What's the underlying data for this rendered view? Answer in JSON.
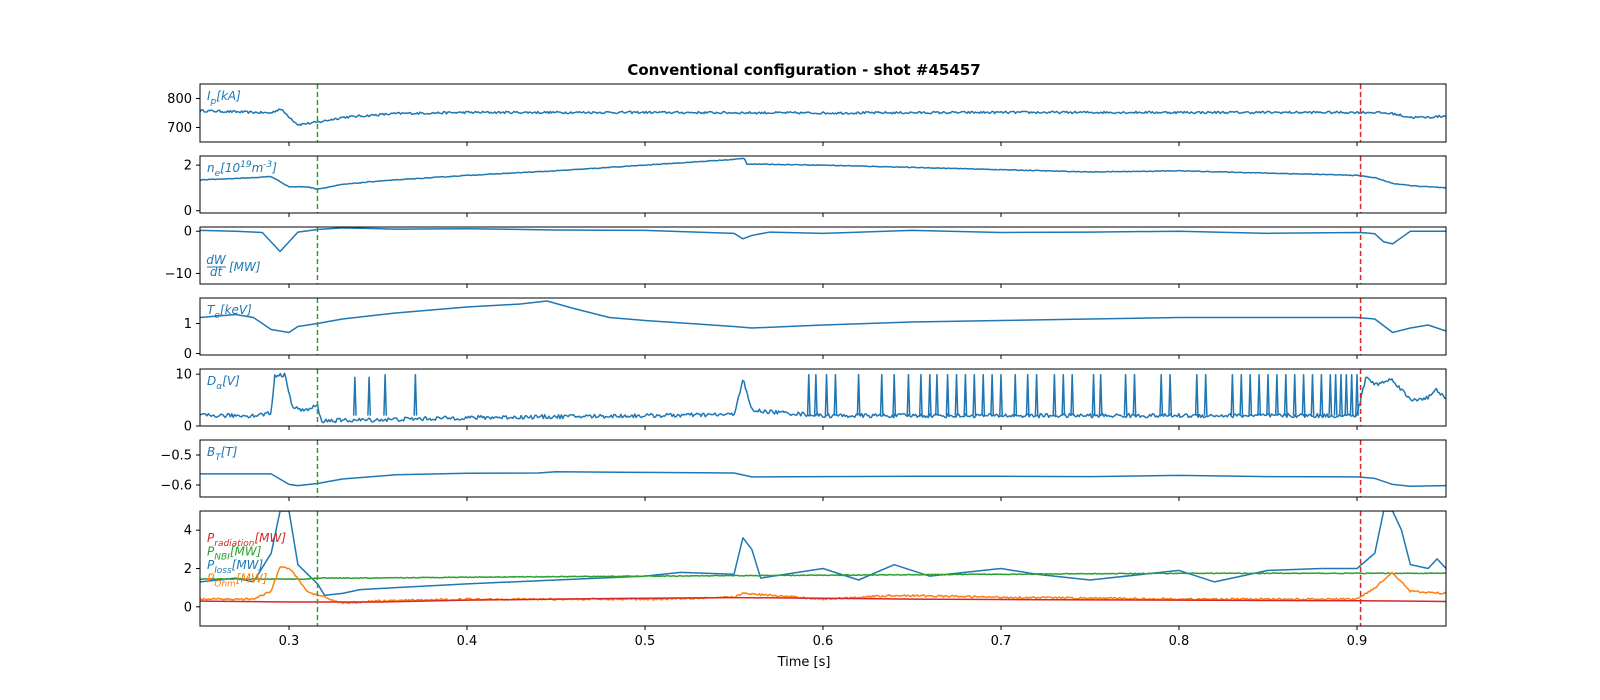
{
  "chart_data": {
    "type": "line",
    "title": "Conventional configuration - shot #45457",
    "xlabel": "Time [s]",
    "xlim": [
      0.25,
      0.95
    ],
    "xticks": [
      0.3,
      0.4,
      0.5,
      0.6,
      0.7,
      0.8,
      0.9
    ],
    "xtick_labels": [
      "0.3",
      "0.4",
      "0.5",
      "0.6",
      "0.7",
      "0.8",
      "0.9"
    ],
    "vlines": [
      {
        "x": 0.316,
        "color": "#2ca02c",
        "style": "dashed"
      },
      {
        "x": 0.902,
        "color": "#d62728",
        "style": "dashed"
      }
    ],
    "panels": [
      {
        "label": "I_p[kA]",
        "label_main": "I",
        "label_sub": "p",
        "label_unit": "[kA]",
        "ylim": [
          650,
          850
        ],
        "yticks": [
          700,
          800
        ],
        "ytick_labels": [
          "700",
          "800"
        ],
        "series": [
          {
            "color": "#1f77b4",
            "noise": 4,
            "x": [
              0.25,
              0.28,
              0.29,
              0.295,
              0.305,
              0.316,
              0.33,
              0.36,
              0.4,
              0.5,
              0.6,
              0.7,
              0.8,
              0.9,
              0.91,
              0.92,
              0.93,
              0.94,
              0.95
            ],
            "y": [
              758,
              752,
              750,
              765,
              710,
              718,
              735,
              748,
              752,
              752,
              750,
              752,
              752,
              752,
              752,
              748,
              735,
              735,
              740
            ]
          }
        ]
      },
      {
        "label": "n_e[10^19 m^-3]",
        "label_main": "n",
        "label_sub": "e",
        "label_unit": "[10",
        "label_sup": "19",
        "label_unit2": "m",
        "label_sup2": "-3",
        "label_end": "]",
        "ylim": [
          -0.1,
          2.4
        ],
        "yticks": [
          0,
          2
        ],
        "ytick_labels": [
          "0",
          "2"
        ],
        "series": [
          {
            "color": "#1f77b4",
            "noise": 0.015,
            "x": [
              0.25,
              0.28,
              0.29,
              0.3,
              0.31,
              0.316,
              0.33,
              0.35,
              0.4,
              0.45,
              0.5,
              0.55,
              0.556,
              0.557,
              0.6,
              0.65,
              0.7,
              0.75,
              0.8,
              0.85,
              0.9,
              0.91,
              0.92,
              0.93,
              0.95
            ],
            "y": [
              1.35,
              1.45,
              1.5,
              1.05,
              1.05,
              0.95,
              1.15,
              1.3,
              1.55,
              1.75,
              2.0,
              2.25,
              2.3,
              2.05,
              2.0,
              1.9,
              1.8,
              1.7,
              1.75,
              1.65,
              1.55,
              1.45,
              1.2,
              1.1,
              1.0
            ]
          }
        ]
      },
      {
        "label": "dW/dt[MW]",
        "label_frac_num": "dW",
        "label_frac_den": "dt",
        "label_unit": "[MW]",
        "ylim": [
          -12.5,
          1.0
        ],
        "yticks": [
          -10,
          0
        ],
        "ytick_labels": [
          "−10",
          "0"
        ],
        "series": [
          {
            "color": "#1f77b4",
            "noise": 0,
            "x": [
              0.25,
              0.27,
              0.285,
              0.295,
              0.305,
              0.316,
              0.33,
              0.36,
              0.4,
              0.45,
              0.5,
              0.55,
              0.555,
              0.56,
              0.57,
              0.6,
              0.65,
              0.7,
              0.75,
              0.8,
              0.85,
              0.9,
              0.905,
              0.91,
              0.915,
              0.92,
              0.93,
              0.95
            ],
            "y": [
              0.2,
              0.0,
              -0.3,
              -4.8,
              -0.2,
              0.4,
              0.8,
              0.5,
              0.6,
              0.3,
              0.2,
              -0.5,
              -1.8,
              -1.0,
              -0.2,
              -0.5,
              0.2,
              -0.3,
              -0.2,
              0.0,
              -0.5,
              -0.3,
              -0.4,
              -0.6,
              -2.5,
              -3.0,
              0.0,
              0.0
            ]
          }
        ]
      },
      {
        "label": "T_e[keV]",
        "label_main": "T",
        "label_sub": "e",
        "label_unit": "[keV]",
        "ylim": [
          -0.05,
          1.85
        ],
        "yticks": [
          0,
          1
        ],
        "ytick_labels": [
          "0",
          "1"
        ],
        "series": [
          {
            "color": "#1f77b4",
            "noise": 0,
            "x": [
              0.25,
              0.27,
              0.28,
              0.29,
              0.3,
              0.305,
              0.316,
              0.33,
              0.36,
              0.4,
              0.43,
              0.445,
              0.46,
              0.48,
              0.5,
              0.55,
              0.56,
              0.6,
              0.65,
              0.7,
              0.75,
              0.8,
              0.85,
              0.9,
              0.91,
              0.92,
              0.93,
              0.94,
              0.95
            ],
            "y": [
              1.2,
              1.3,
              1.2,
              0.8,
              0.7,
              0.9,
              1.0,
              1.15,
              1.35,
              1.55,
              1.65,
              1.75,
              1.5,
              1.2,
              1.1,
              0.9,
              0.85,
              0.95,
              1.05,
              1.1,
              1.15,
              1.2,
              1.2,
              1.2,
              1.15,
              0.7,
              0.85,
              0.95,
              0.75
            ]
          }
        ]
      },
      {
        "label": "D_alpha[V]",
        "label_main": "D",
        "label_sub": "α",
        "label_unit": "[V]",
        "ylim": [
          0,
          11.0
        ],
        "yticks": [
          0,
          10
        ],
        "ytick_labels": [
          "0",
          "10"
        ],
        "series": [
          {
            "color": "#1f77b4",
            "noise": 0.4,
            "x": [
              0.25,
              0.26,
              0.28,
              0.29,
              0.292,
              0.298,
              0.302,
              0.31,
              0.316,
              0.318,
              0.35,
              0.4,
              0.5,
              0.55,
              0.555,
              0.56,
              0.6,
              0.7,
              0.8,
              0.9,
              0.905,
              0.91,
              0.92,
              0.93,
              0.94,
              0.945,
              0.95
            ],
            "y": [
              2.0,
              2.0,
              2.0,
              2.5,
              9.8,
              9.8,
              3.5,
              3.0,
              4.0,
              1.0,
              1.2,
              1.6,
              2.0,
              2.2,
              9.0,
              3.0,
              2.0,
              2.0,
              2.0,
              2.0,
              9.5,
              8.0,
              9.0,
              5.0,
              5.5,
              7.0,
              5.0
            ]
          },
          {
            "color": "#1f77b4",
            "spikes_x": [
              0.337,
              0.345,
              0.354,
              0.371,
              0.592,
              0.596,
              0.602,
              0.607,
              0.62,
              0.633,
              0.64,
              0.648,
              0.655,
              0.66,
              0.664,
              0.67,
              0.675,
              0.68,
              0.685,
              0.69,
              0.695,
              0.7,
              0.708,
              0.715,
              0.72,
              0.73,
              0.735,
              0.74,
              0.752,
              0.756,
              0.77,
              0.775,
              0.79,
              0.795,
              0.81,
              0.815,
              0.83,
              0.835,
              0.84,
              0.845,
              0.85,
              0.855,
              0.86,
              0.865,
              0.87,
              0.875,
              0.88,
              0.885,
              0.888,
              0.891,
              0.894,
              0.897,
              0.9
            ],
            "spikes_y": [
              9.5,
              9.5,
              10.0,
              10.0,
              10.0,
              10.0,
              10.0,
              10.0,
              10.0,
              10.0,
              10.0,
              10.0,
              10.0,
              10.0,
              10.0,
              10.0,
              10.0,
              10.0,
              10.0,
              10.0,
              10.0,
              10.0,
              10.0,
              10.0,
              10.0,
              10.0,
              10.0,
              10.0,
              10.0,
              10.0,
              10.0,
              10.0,
              10.0,
              10.0,
              10.0,
              10.0,
              10.0,
              10.0,
              10.0,
              10.0,
              10.0,
              10.0,
              10.0,
              10.0,
              10.0,
              10.0,
              10.0,
              10.0,
              10.0,
              10.0,
              10.0,
              10.0,
              10.0
            ]
          }
        ]
      },
      {
        "label": "B_T[T]",
        "label_main": "B",
        "label_sub": "T",
        "label_unit": "[T]",
        "ylim": [
          -0.64,
          -0.45
        ],
        "yticks": [
          -0.6,
          -0.5
        ],
        "ytick_labels": [
          "−0.6",
          "−0.5"
        ],
        "series": [
          {
            "color": "#1f77b4",
            "noise": 0,
            "x": [
              0.25,
              0.29,
              0.3,
              0.305,
              0.316,
              0.33,
              0.36,
              0.4,
              0.44,
              0.45,
              0.5,
              0.55,
              0.56,
              0.6,
              0.65,
              0.7,
              0.75,
              0.8,
              0.85,
              0.9,
              0.91,
              0.92,
              0.93,
              0.95
            ],
            "y": [
              -0.563,
              -0.563,
              -0.598,
              -0.602,
              -0.595,
              -0.58,
              -0.566,
              -0.561,
              -0.56,
              -0.556,
              -0.558,
              -0.56,
              -0.573,
              -0.572,
              -0.571,
              -0.571,
              -0.572,
              -0.568,
              -0.572,
              -0.573,
              -0.578,
              -0.598,
              -0.604,
              -0.602
            ]
          }
        ]
      },
      {
        "ylim": [
          -1.0,
          5.0
        ],
        "yticks": [
          0,
          2,
          4
        ],
        "ytick_labels": [
          "0",
          "2",
          "4"
        ],
        "series": [
          {
            "name": "P_loss[MW]",
            "label_main": "P",
            "label_sub": "loss",
            "label_unit": "[MW]",
            "color": "#1f77b4",
            "noise": 0,
            "x": [
              0.25,
              0.27,
              0.28,
              0.29,
              0.295,
              0.3,
              0.305,
              0.316,
              0.32,
              0.33,
              0.34,
              0.36,
              0.4,
              0.45,
              0.5,
              0.52,
              0.55,
              0.555,
              0.56,
              0.565,
              0.6,
              0.62,
              0.64,
              0.66,
              0.7,
              0.72,
              0.75,
              0.8,
              0.82,
              0.85,
              0.88,
              0.9,
              0.91,
              0.915,
              0.92,
              0.925,
              0.93,
              0.94,
              0.945,
              0.95
            ],
            "y": [
              1.3,
              1.5,
              1.3,
              2.8,
              5.0,
              5.0,
              2.2,
              1.2,
              0.6,
              0.7,
              0.9,
              1.0,
              1.2,
              1.4,
              1.6,
              1.8,
              1.7,
              3.6,
              3.0,
              1.5,
              2.0,
              1.4,
              2.2,
              1.6,
              2.0,
              1.7,
              1.4,
              1.9,
              1.3,
              1.9,
              2.0,
              2.0,
              2.8,
              5.0,
              5.0,
              4.0,
              2.2,
              2.0,
              2.5,
              2.0
            ]
          },
          {
            "name": "P_NBI[MW]",
            "label_main": "P",
            "label_sub": "NBI",
            "label_unit": "[MW]",
            "color": "#2ca02c",
            "noise": 0.02,
            "x": [
              0.25,
              0.31,
              0.316,
              0.35,
              0.4,
              0.5,
              0.6,
              0.7,
              0.8,
              0.9,
              0.95
            ],
            "y": [
              1.45,
              1.45,
              1.5,
              1.5,
              1.55,
              1.6,
              1.65,
              1.7,
              1.75,
              1.75,
              1.75
            ]
          },
          {
            "name": "P_Ohm[MW]",
            "label_main": "P",
            "label_sub": "Ohm",
            "label_unit": "[MW]",
            "color": "#ff7f0e",
            "noise": 0.05,
            "x": [
              0.25,
              0.28,
              0.29,
              0.295,
              0.3,
              0.305,
              0.31,
              0.316,
              0.33,
              0.35,
              0.4,
              0.5,
              0.55,
              0.555,
              0.6,
              0.64,
              0.7,
              0.8,
              0.9,
              0.91,
              0.92,
              0.93,
              0.95
            ],
            "y": [
              0.4,
              0.4,
              0.8,
              2.1,
              2.0,
              1.5,
              0.8,
              0.6,
              0.2,
              0.3,
              0.4,
              0.4,
              0.5,
              0.7,
              0.4,
              0.6,
              0.5,
              0.4,
              0.4,
              1.0,
              1.8,
              0.8,
              0.7
            ]
          },
          {
            "name": "P_radiation[MW]",
            "label_main": "P",
            "label_sub": "radiation",
            "label_unit": "[MW]",
            "color": "#d62728",
            "noise": 0,
            "x": [
              0.25,
              0.3,
              0.35,
              0.4,
              0.45,
              0.5,
              0.55,
              0.6,
              0.65,
              0.7,
              0.75,
              0.8,
              0.85,
              0.9,
              0.95
            ],
            "y": [
              0.3,
              0.25,
              0.25,
              0.35,
              0.4,
              0.45,
              0.48,
              0.45,
              0.4,
              0.38,
              0.36,
              0.35,
              0.33,
              0.32,
              0.28
            ]
          }
        ]
      }
    ]
  }
}
